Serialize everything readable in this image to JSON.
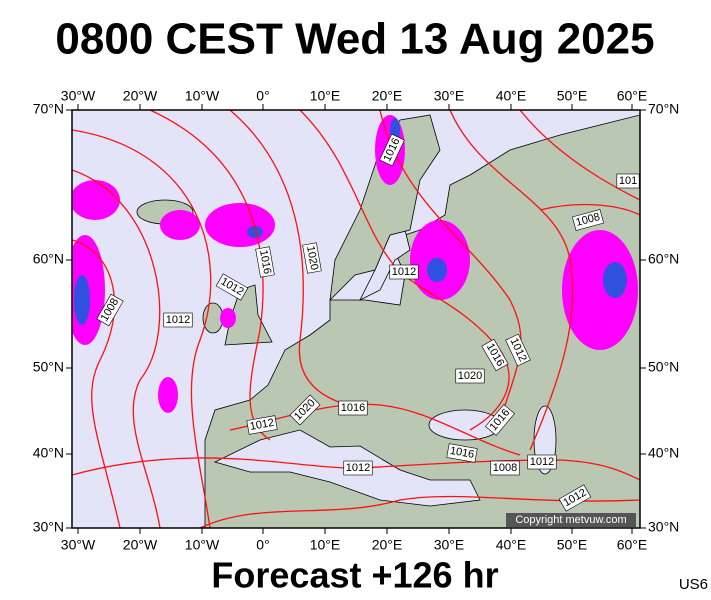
{
  "title": "0800 CEST Wed 13 Aug 2025",
  "longitude_labels": [
    "30°W",
    "20°W",
    "10°W",
    "0°",
    "10°E",
    "20°E",
    "30°E",
    "40°E",
    "50°E",
    "60°E"
  ],
  "latitude_labels": [
    "70°N",
    "60°N",
    "50°N",
    "40°N",
    "30°N"
  ],
  "isobar_labels": [
    "1016",
    "1016",
    "1020",
    "1012",
    "1008",
    "1012",
    "1012",
    "1008",
    "101",
    "1016",
    "1012",
    "1020",
    "1016",
    "1016",
    "1020",
    "1012",
    "1016",
    "1008",
    "1012",
    "1012",
    "1012"
  ],
  "copyright": "Copyright metvuw.com",
  "footer": "Forecast +126 hr",
  "code": "US6"
}
